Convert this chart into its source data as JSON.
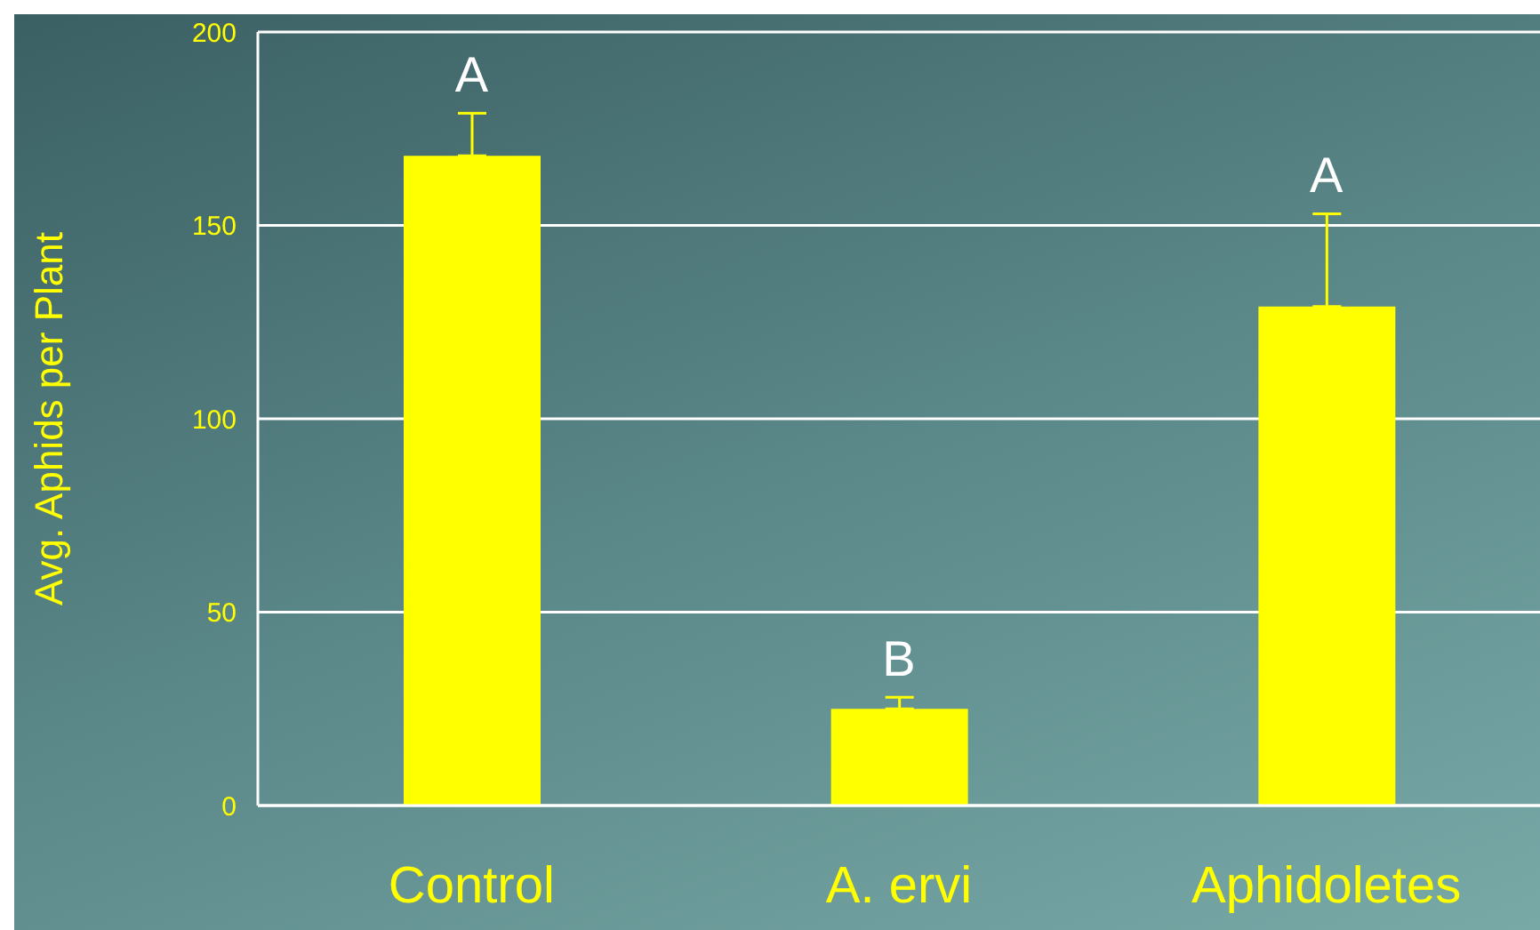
{
  "chart_data": {
    "type": "bar",
    "ylabel": "Avg. Aphids per Plant",
    "categories": [
      "Control",
      "A. ervi",
      "Aphidoletes"
    ],
    "values": [
      168,
      25,
      129
    ],
    "color": "#ffff00",
    "errors": [
      [
        168,
        179
      ],
      [
        25,
        28
      ],
      [
        129,
        153
      ]
    ],
    "ylim": [
      0,
      200
    ],
    "yticks": [
      0,
      50,
      100,
      150,
      200
    ],
    "grid": "y",
    "annotations": [
      "A",
      "B",
      "A"
    ]
  }
}
